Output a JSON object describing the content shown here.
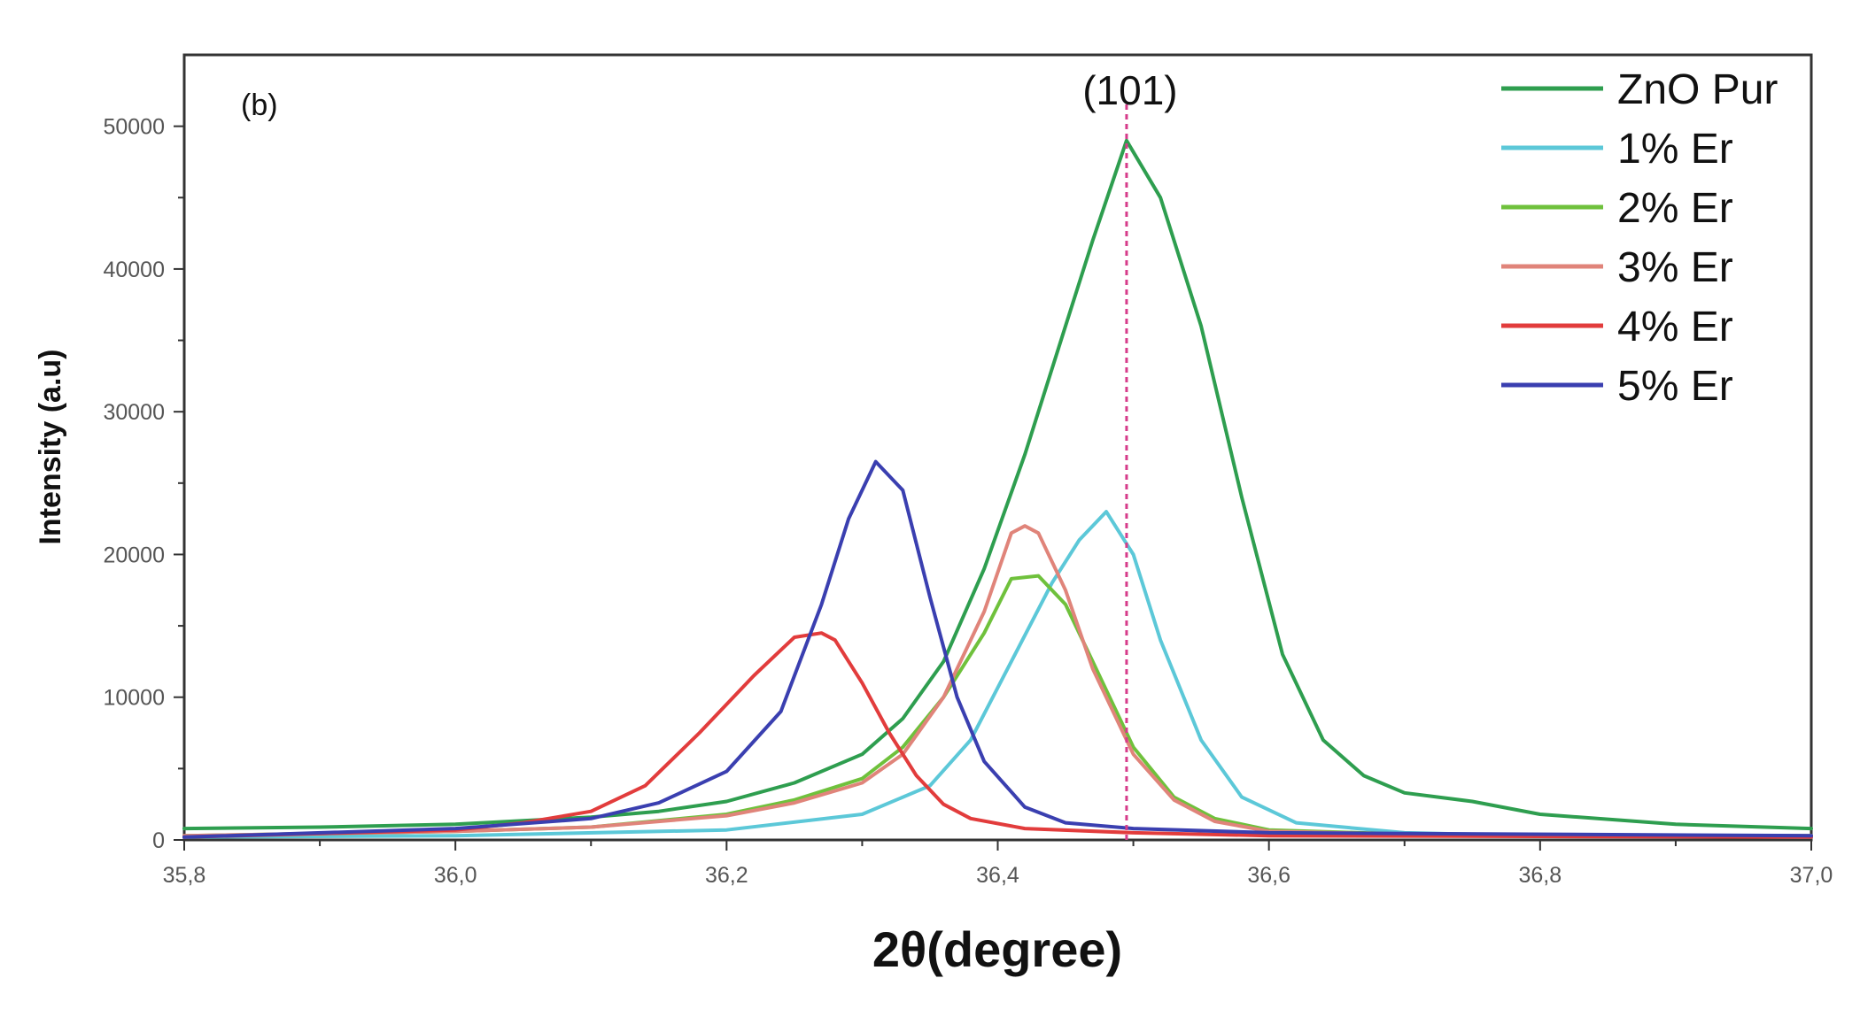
{
  "chart_data": {
    "type": "line",
    "panel_label": "(b)",
    "xlabel": "2θ(degree)",
    "ylabel": "Intensity (a.u)",
    "xlim": [
      35.8,
      37.0
    ],
    "ylim": [
      0,
      55000
    ],
    "x_ticks": [
      35.8,
      36.0,
      36.2,
      36.4,
      36.6,
      36.8,
      37.0
    ],
    "x_tick_labels": [
      "35,8",
      "36,0",
      "36,2",
      "36,4",
      "36,6",
      "36,8",
      "37,0"
    ],
    "y_ticks": [
      0,
      10000,
      20000,
      30000,
      40000,
      50000
    ],
    "y_tick_labels": [
      "0",
      "10000",
      "20000",
      "30000",
      "40000",
      "50000"
    ],
    "grid": false,
    "legend_position": "top-right",
    "annotations": [
      {
        "text": "(101)",
        "x": 36.495,
        "line_color": "#d63c8a",
        "line_style": "dotted"
      }
    ],
    "series": [
      {
        "name": "ZnO Pur",
        "color": "#2e9e4f",
        "x": [
          35.8,
          35.9,
          36.0,
          36.1,
          36.15,
          36.2,
          36.25,
          36.3,
          36.33,
          36.36,
          36.39,
          36.42,
          36.45,
          36.47,
          36.495,
          36.52,
          36.55,
          36.58,
          36.61,
          36.64,
          36.67,
          36.7,
          36.75,
          36.8,
          36.9,
          37.0
        ],
        "y": [
          800,
          900,
          1100,
          1600,
          2000,
          2700,
          4000,
          6000,
          8500,
          12500,
          19000,
          27000,
          36000,
          42000,
          49000,
          45000,
          36000,
          24000,
          13000,
          7000,
          4500,
          3300,
          2700,
          1800,
          1100,
          800
        ]
      },
      {
        "name": "1% Er",
        "color": "#5cc8d8",
        "x": [
          35.8,
          36.0,
          36.2,
          36.3,
          36.35,
          36.38,
          36.41,
          36.44,
          36.46,
          36.48,
          36.5,
          36.52,
          36.55,
          36.58,
          36.62,
          36.7,
          36.8,
          37.0
        ],
        "y": [
          200,
          300,
          700,
          1800,
          3800,
          7000,
          12500,
          18000,
          21000,
          23000,
          20000,
          14000,
          7000,
          3000,
          1200,
          500,
          300,
          200
        ]
      },
      {
        "name": "2% Er",
        "color": "#6fc13c",
        "x": [
          35.8,
          36.0,
          36.1,
          36.2,
          36.25,
          36.3,
          36.33,
          36.36,
          36.39,
          36.41,
          36.43,
          36.45,
          36.47,
          36.5,
          36.53,
          36.56,
          36.6,
          36.7,
          36.8,
          37.0
        ],
        "y": [
          300,
          600,
          900,
          1800,
          2800,
          4300,
          6500,
          10000,
          14500,
          18300,
          18500,
          16500,
          12500,
          6500,
          3000,
          1500,
          700,
          400,
          300,
          300
        ]
      },
      {
        "name": "3% Er",
        "color": "#e0847a",
        "x": [
          35.8,
          36.0,
          36.1,
          36.2,
          36.25,
          36.3,
          36.33,
          36.36,
          36.39,
          36.41,
          36.42,
          36.43,
          36.45,
          36.47,
          36.5,
          36.53,
          36.56,
          36.6,
          36.7,
          36.8,
          37.0
        ],
        "y": [
          300,
          600,
          900,
          1700,
          2600,
          4000,
          6000,
          10000,
          16000,
          21500,
          22000,
          21500,
          17500,
          12000,
          6000,
          2800,
          1300,
          600,
          400,
          300,
          300
        ]
      },
      {
        "name": "4% Er",
        "color": "#e23c3c",
        "x": [
          35.8,
          36.0,
          36.05,
          36.1,
          36.14,
          36.18,
          36.22,
          36.25,
          36.27,
          36.28,
          36.3,
          36.32,
          36.34,
          36.36,
          36.38,
          36.42,
          36.5,
          36.6,
          37.0
        ],
        "y": [
          200,
          700,
          1200,
          2000,
          3800,
          7500,
          11500,
          14200,
          14500,
          14000,
          11000,
          7500,
          4500,
          2500,
          1500,
          800,
          500,
          300,
          200
        ]
      },
      {
        "name": "5% Er",
        "color": "#3a3fb0",
        "x": [
          35.8,
          36.0,
          36.1,
          36.15,
          36.2,
          36.24,
          36.27,
          36.29,
          36.31,
          36.33,
          36.35,
          36.37,
          36.39,
          36.42,
          36.45,
          36.5,
          36.6,
          37.0
        ],
        "y": [
          200,
          800,
          1500,
          2600,
          4800,
          9000,
          16500,
          22500,
          26500,
          24500,
          17000,
          10000,
          5500,
          2300,
          1200,
          800,
          500,
          300
        ]
      }
    ]
  }
}
